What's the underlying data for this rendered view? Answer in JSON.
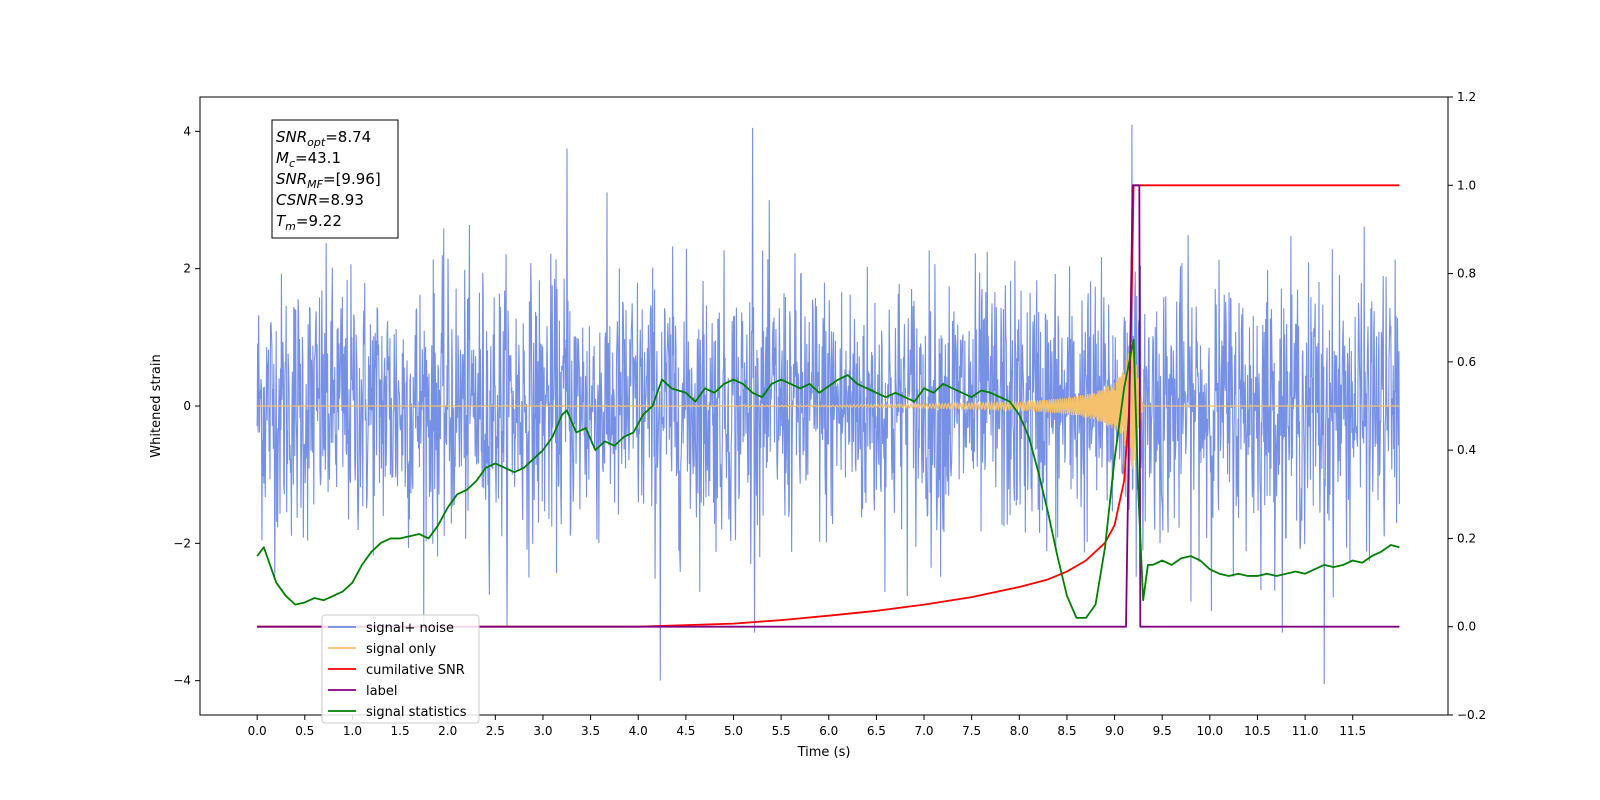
{
  "chart_data": {
    "type": "line",
    "title": "",
    "xlabel": "Time (s)",
    "ylabel": "Whitened strain",
    "xlim": [
      -0.6,
      12.5
    ],
    "ylim": [
      -4.5,
      4.5
    ],
    "y2lim": [
      -0.2,
      1.2
    ],
    "x_ticks": [
      0.0,
      0.5,
      1.0,
      1.5,
      2.0,
      2.5,
      3.0,
      3.5,
      4.0,
      4.5,
      5.0,
      5.5,
      6.0,
      6.5,
      7.0,
      7.5,
      8.0,
      8.5,
      9.0,
      9.5,
      10.0,
      10.5,
      11.0,
      11.5
    ],
    "x_tick_labels": [
      "0.0",
      "0.5",
      "1.0",
      "1.5",
      "2.0",
      "2.5",
      "3.0",
      "3.5",
      "4.0",
      "4.5",
      "5.0",
      "5.5",
      "6.0",
      "6.5",
      "7.0",
      "7.5",
      "8.0",
      "8.5",
      "9.0",
      "9.5",
      "10.0",
      "10.5",
      "11.0",
      "11.5"
    ],
    "y_ticks": [
      -4,
      -2,
      0,
      2,
      4
    ],
    "y_tick_labels": [
      "−4",
      "−2",
      "0",
      "2",
      "4"
    ],
    "y2_ticks": [
      -0.2,
      0.0,
      0.2,
      0.4,
      0.6,
      0.8,
      1.0,
      1.2
    ],
    "y2_tick_labels": [
      "−0.2",
      "0.0",
      "0.2",
      "0.4",
      "0.6",
      "0.8",
      "1.0",
      "1.2"
    ],
    "grid": false,
    "legend_position": "lower-left",
    "series": [
      {
        "name": "signal+ noise",
        "axis": "left",
        "color": "#6f8ae5",
        "description": "dense whitened noise, amplitude roughly ±2 with spikes to ±4",
        "x_range": [
          0.0,
          11.99
        ],
        "notable_peaks": [
          [
            3.25,
            3.75
          ],
          [
            5.2,
            4.05
          ],
          [
            9.18,
            4.1
          ],
          [
            11.2,
            -4.05
          ],
          [
            4.23,
            -4.0
          ]
        ]
      },
      {
        "name": "signal only",
        "axis": "left",
        "color": "#f5c16c",
        "description": "chirp waveform near zero growing to about ±1 at the merger",
        "x": [
          0.0,
          6.0,
          7.0,
          8.0,
          8.5,
          8.8,
          9.0,
          9.1,
          9.18,
          9.22,
          9.3,
          11.99
        ],
        "envelope": [
          0.0,
          0.01,
          0.03,
          0.06,
          0.12,
          0.2,
          0.35,
          0.55,
          0.95,
          0.7,
          0.0,
          0.0
        ]
      },
      {
        "name": "cumilative SNR",
        "axis": "right",
        "color": "#ff0000",
        "x": [
          4.0,
          5.0,
          5.5,
          6.0,
          6.5,
          7.0,
          7.5,
          8.0,
          8.3,
          8.5,
          8.7,
          8.9,
          9.0,
          9.1,
          9.15,
          9.18,
          9.2,
          11.99
        ],
        "y": [
          0.0,
          0.007,
          0.015,
          0.025,
          0.036,
          0.05,
          0.067,
          0.09,
          0.107,
          0.125,
          0.15,
          0.19,
          0.23,
          0.33,
          0.48,
          0.75,
          1.0,
          1.0
        ]
      },
      {
        "name": "label",
        "axis": "right",
        "color": "#800080",
        "x": [
          0.0,
          9.12,
          9.19,
          9.26,
          9.27,
          11.99
        ],
        "y": [
          0.0,
          0.0,
          1.0,
          1.0,
          0.0,
          0.0
        ]
      },
      {
        "name": "signal statistics",
        "axis": "right",
        "color": "#008000",
        "x": [
          0.0,
          0.07,
          0.2,
          0.3,
          0.4,
          0.5,
          0.6,
          0.7,
          0.8,
          0.9,
          1.0,
          1.1,
          1.2,
          1.3,
          1.4,
          1.5,
          1.6,
          1.7,
          1.8,
          1.9,
          2.0,
          2.1,
          2.2,
          2.3,
          2.4,
          2.5,
          2.6,
          2.7,
          2.8,
          2.9,
          3.0,
          3.1,
          3.2,
          3.25,
          3.35,
          3.45,
          3.55,
          3.65,
          3.75,
          3.85,
          3.95,
          4.05,
          4.15,
          4.25,
          4.35,
          4.5,
          4.6,
          4.7,
          4.8,
          4.9,
          5.0,
          5.1,
          5.2,
          5.3,
          5.4,
          5.5,
          5.6,
          5.7,
          5.8,
          5.9,
          6.0,
          6.1,
          6.2,
          6.3,
          6.4,
          6.5,
          6.6,
          6.7,
          6.8,
          6.9,
          7.0,
          7.1,
          7.2,
          7.3,
          7.4,
          7.5,
          7.6,
          7.7,
          7.8,
          7.9,
          8.0,
          8.1,
          8.2,
          8.3,
          8.4,
          8.5,
          8.6,
          8.7,
          8.8,
          8.9,
          9.0,
          9.1,
          9.2,
          9.25,
          9.3,
          9.35,
          9.4,
          9.5,
          9.6,
          9.7,
          9.8,
          9.9,
          10.0,
          10.1,
          10.2,
          10.3,
          10.4,
          10.5,
          10.6,
          10.7,
          10.8,
          10.9,
          11.0,
          11.1,
          11.2,
          11.3,
          11.4,
          11.5,
          11.6,
          11.7,
          11.8,
          11.9,
          11.99
        ],
        "y": [
          0.16,
          0.18,
          0.1,
          0.07,
          0.05,
          0.055,
          0.065,
          0.06,
          0.07,
          0.08,
          0.1,
          0.14,
          0.17,
          0.19,
          0.2,
          0.2,
          0.205,
          0.21,
          0.2,
          0.23,
          0.27,
          0.3,
          0.31,
          0.33,
          0.36,
          0.37,
          0.36,
          0.35,
          0.36,
          0.38,
          0.4,
          0.43,
          0.48,
          0.49,
          0.44,
          0.45,
          0.4,
          0.42,
          0.41,
          0.43,
          0.44,
          0.48,
          0.5,
          0.56,
          0.54,
          0.53,
          0.51,
          0.54,
          0.53,
          0.55,
          0.56,
          0.55,
          0.53,
          0.52,
          0.55,
          0.56,
          0.55,
          0.54,
          0.55,
          0.53,
          0.545,
          0.56,
          0.57,
          0.55,
          0.54,
          0.53,
          0.52,
          0.53,
          0.52,
          0.51,
          0.54,
          0.53,
          0.55,
          0.54,
          0.53,
          0.52,
          0.535,
          0.53,
          0.52,
          0.51,
          0.48,
          0.43,
          0.35,
          0.26,
          0.16,
          0.07,
          0.02,
          0.02,
          0.05,
          0.18,
          0.38,
          0.54,
          0.65,
          0.3,
          0.06,
          0.14,
          0.14,
          0.15,
          0.14,
          0.155,
          0.16,
          0.15,
          0.13,
          0.12,
          0.115,
          0.12,
          0.115,
          0.115,
          0.12,
          0.115,
          0.12,
          0.125,
          0.12,
          0.13,
          0.14,
          0.135,
          0.14,
          0.15,
          0.145,
          0.16,
          0.17,
          0.185,
          0.18
        ]
      }
    ],
    "annotation": {
      "lines": [
        {
          "sym": "SNR",
          "sub": "opt",
          "value": "=8.74"
        },
        {
          "sym": "M",
          "sub": "c",
          "value": "=43.1"
        },
        {
          "sym": "SNR",
          "sub": "MF",
          "value": "=[9.96]"
        },
        {
          "sym": "CSNR",
          "sub": "",
          "value": "=8.93"
        },
        {
          "sym": "T",
          "sub": "m",
          "value": "=9.22"
        }
      ]
    },
    "legend": [
      {
        "label": "signal+ noise",
        "color": "#6f8ae5"
      },
      {
        "label": "signal only",
        "color": "#f5c16c"
      },
      {
        "label": "cumilative SNR",
        "color": "#ff0000"
      },
      {
        "label": "label",
        "color": "#800080"
      },
      {
        "label": "signal statistics",
        "color": "#008000"
      }
    ]
  }
}
